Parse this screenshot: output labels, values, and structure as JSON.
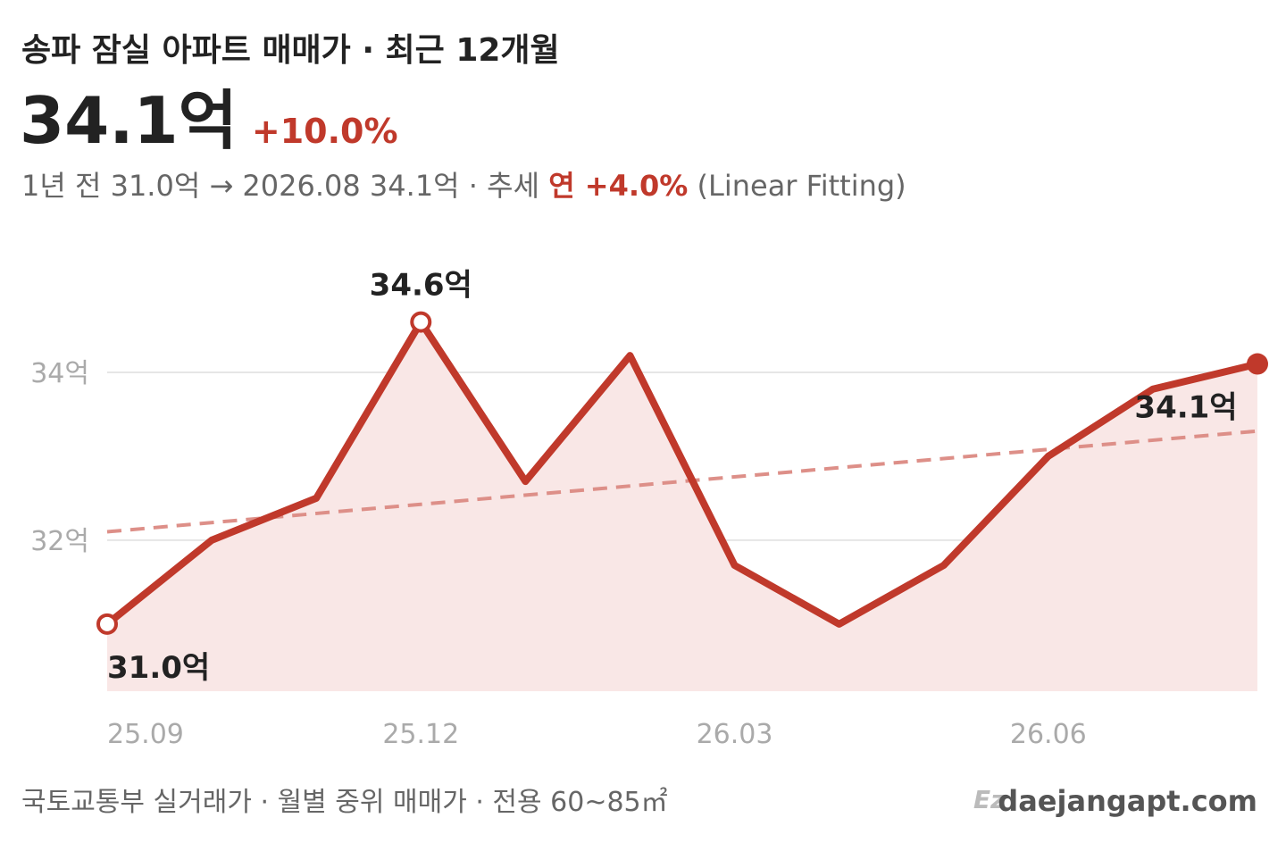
{
  "chart_data": {
    "type": "line",
    "title": "송파 잠실 아파트 매매가 · 최근 12개월",
    "headline_value": "34.1억",
    "headline_change": "+10.0%",
    "subtitle": {
      "prefix": "1년 전 31.0억 → 2026.08 34.1억 · 추세",
      "trend_rate": "연 +4.0%",
      "method": "(Linear Fitting)"
    },
    "footer": {
      "source": "국토교통부 실거래가 · 월별 중위 매매가 · 전용 60~85㎡",
      "brand": "daejangapt.com"
    },
    "categories": [
      "25.09",
      null,
      null,
      "25.12",
      null,
      null,
      "26.03",
      null,
      null,
      "26.06",
      null,
      null
    ],
    "series": [
      {
        "name": "매매가",
        "color": "#c0392b",
        "values": [
          31.0,
          32.0,
          32.5,
          34.6,
          32.7,
          34.2,
          31.7,
          31.0,
          31.7,
          33.0,
          33.8,
          34.1
        ],
        "value_labels": [
          "31.0억",
          null,
          null,
          "34.6억",
          null,
          null,
          null,
          null,
          null,
          null,
          null,
          "34.1억"
        ]
      }
    ],
    "trend": {
      "color": "#dd8f88",
      "values": [
        32.1,
        33.3
      ]
    },
    "area_color": "#f9e7e6",
    "ylim": [
      30.2,
      35.5
    ],
    "yticks": [
      {
        "value": 32,
        "label": "32억"
      },
      {
        "value": 34,
        "label": "34억"
      }
    ],
    "grid": true
  }
}
